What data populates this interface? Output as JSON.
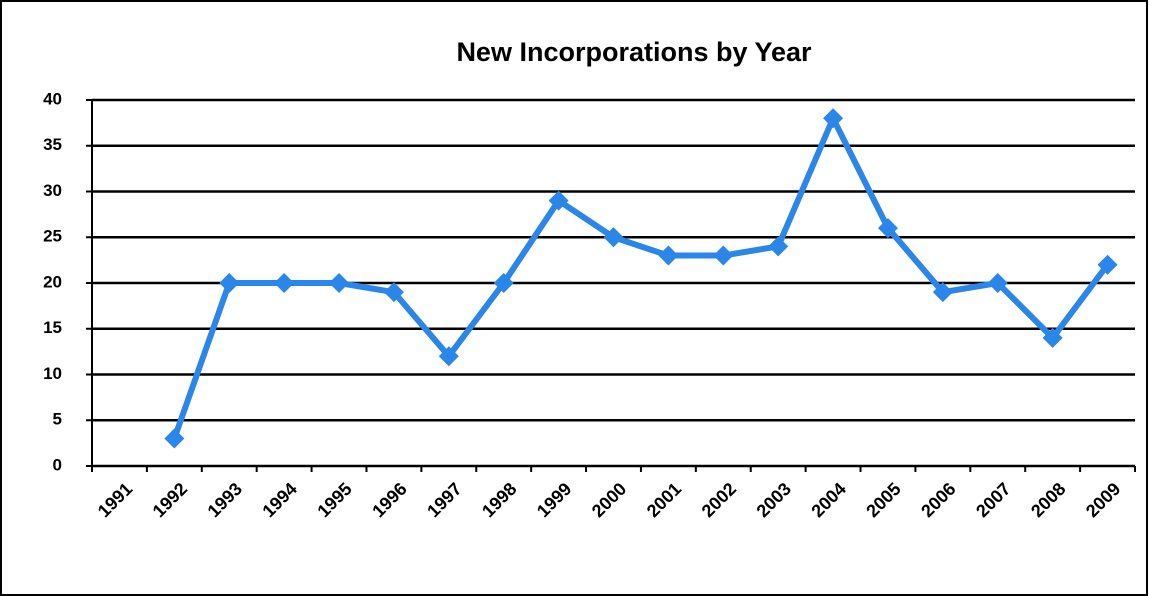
{
  "chart_data": {
    "type": "line",
    "title": "New Incorporations by Year",
    "categories": [
      "1991",
      "1992",
      "1993",
      "1994",
      "1995",
      "1996",
      "1997",
      "1998",
      "1999",
      "2000",
      "2001",
      "2002",
      "2003",
      "2004",
      "2005",
      "2006",
      "2007",
      "2008",
      "2009"
    ],
    "series": [
      {
        "name": "New Incorporations",
        "color": "#2a86e8",
        "values": [
          null,
          3,
          20,
          20,
          20,
          19,
          12,
          20,
          29,
          25,
          23,
          23,
          24,
          38,
          26,
          19,
          20,
          14,
          22
        ]
      }
    ],
    "ylim": [
      0,
      40
    ],
    "yticks": [
      0,
      5,
      10,
      15,
      20,
      25,
      30,
      35,
      40
    ],
    "grid": true,
    "legend": false
  }
}
